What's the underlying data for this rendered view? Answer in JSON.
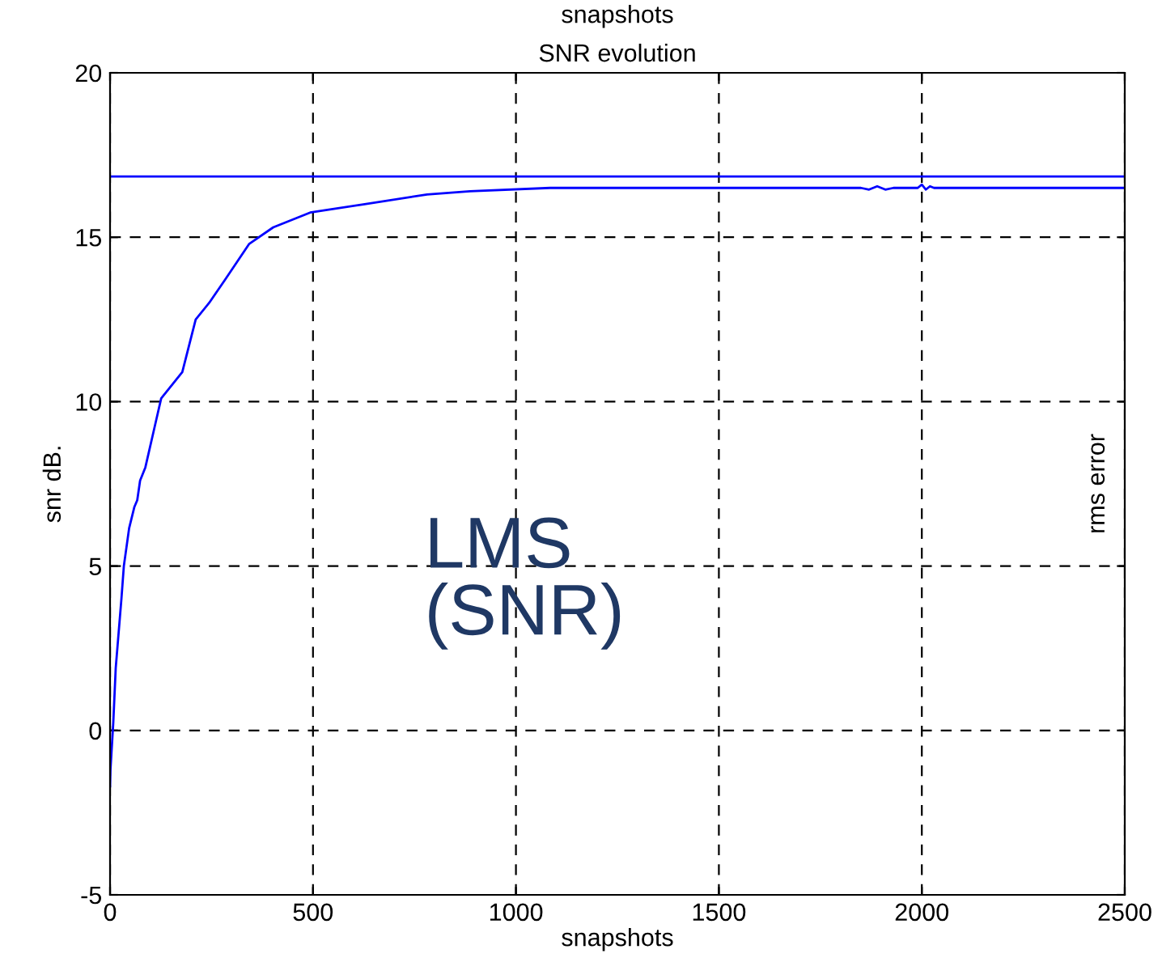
{
  "chart_data": {
    "type": "line",
    "title": "SNR evolution",
    "xlabel": "snapshots",
    "ylabel": "snr dB.",
    "annotations": [
      "snapshots",
      "rms error",
      "LMS\n(SNR)"
    ],
    "xlim": [
      0,
      2500
    ],
    "xticks": [
      0,
      500,
      1000,
      1500,
      2000,
      2500
    ],
    "ylim": [
      -5,
      20
    ],
    "yticks": [
      -5,
      0,
      5,
      10,
      15,
      20
    ],
    "grid": true,
    "line_style": "solid",
    "marker": "none",
    "ref_lines": [
      {
        "axis": "y",
        "value": 16.85,
        "color": "#0000ff",
        "line_style": "solid"
      }
    ],
    "series": [
      {
        "color": "#0000ff",
        "x": [
          0,
          1,
          8,
          14,
          28,
          34,
          47,
          60,
          67,
          74,
          87,
          113,
          126,
          178,
          211,
          244,
          283,
          343,
          402,
          493,
          624,
          781,
          887,
          1084,
          1500,
          1850,
          1870,
          1890,
          1910,
          1930,
          1990,
          2000,
          2010,
          2020,
          2030,
          2500
        ],
        "values": [
          -1.7,
          -1.2,
          0.25,
          1.9,
          4.0,
          5.0,
          6.15,
          6.8,
          7.0,
          7.6,
          8.0,
          9.4,
          10.1,
          10.9,
          12.5,
          13.0,
          13.7,
          14.8,
          15.3,
          15.75,
          16.0,
          16.3,
          16.4,
          16.5,
          16.5,
          16.5,
          16.45,
          16.55,
          16.45,
          16.5,
          16.5,
          16.6,
          16.45,
          16.55,
          16.5,
          16.5
        ]
      }
    ]
  }
}
